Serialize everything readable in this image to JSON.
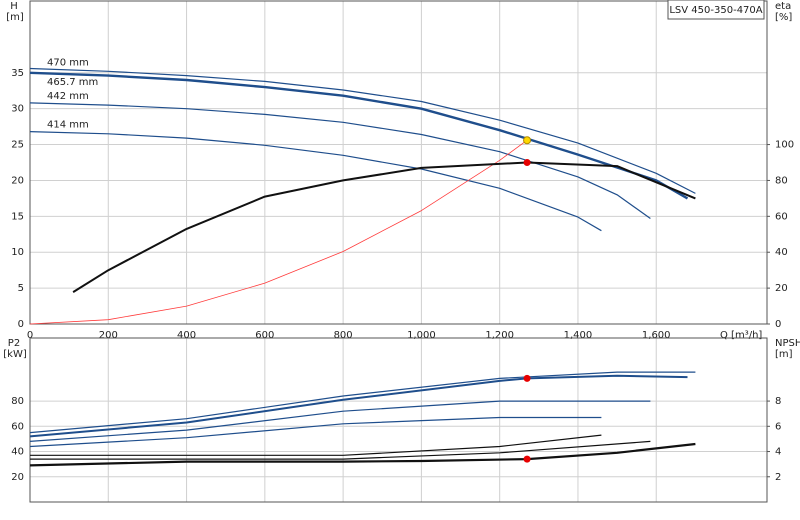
{
  "chart_data": [
    {
      "type": "line",
      "model": "LSV 450-350-470A",
      "ylabel": "H",
      "yunit": "[m]",
      "y2label": "eta",
      "y2unit": "[%]",
      "xlabel": "Q [m³/h]",
      "xlim": [
        0,
        1883
      ],
      "xticks": [
        0,
        200,
        400,
        600,
        800,
        {
          "value": 1000,
          "label": "1,000"
        },
        {
          "value": 1200,
          "label": "1,200"
        },
        {
          "value": 1400,
          "label": "1,400"
        },
        {
          "value": 1600,
          "label": "1,600"
        }
      ],
      "ylim": [
        0,
        45
      ],
      "yticks": [
        0,
        5,
        10,
        15,
        20,
        25,
        30,
        35
      ],
      "y2lim": [
        0,
        180
      ],
      "y2ticks": [
        0,
        20,
        40,
        60,
        80,
        100
      ],
      "grid": true,
      "series": [
        {
          "name": "470 mm",
          "color": "#1f4e8c",
          "line_width": 1.2,
          "x": [
            0,
            200,
            400,
            600,
            800,
            1000,
            1200,
            1400,
            1600,
            1700
          ],
          "values": [
            35.6,
            35.2,
            34.6,
            33.8,
            32.6,
            31.0,
            28.4,
            25.2,
            21.0,
            18.2
          ]
        },
        {
          "name": "465.7 mm",
          "color": "#1f4e8c",
          "line_width": 2.4,
          "x": [
            0,
            200,
            400,
            600,
            800,
            1000,
            1200,
            1400,
            1600,
            1680
          ],
          "values": [
            35.0,
            34.6,
            34.0,
            33.0,
            31.8,
            30.0,
            27.0,
            23.6,
            20.0,
            17.5
          ]
        },
        {
          "name": "442 mm",
          "color": "#1f4e8c",
          "line_width": 1.2,
          "x": [
            0,
            200,
            400,
            600,
            800,
            1000,
            1200,
            1400,
            1500,
            1585
          ],
          "values": [
            30.8,
            30.5,
            30.0,
            29.2,
            28.1,
            26.4,
            24.0,
            20.5,
            18.0,
            14.7
          ]
        },
        {
          "name": "414 mm",
          "color": "#1f4e8c",
          "line_width": 1.2,
          "x": [
            0,
            200,
            400,
            600,
            800,
            1000,
            1200,
            1400,
            1460
          ],
          "values": [
            26.8,
            26.5,
            25.9,
            24.9,
            23.5,
            21.6,
            18.9,
            14.9,
            13.0
          ]
        },
        {
          "color": "#ff3b3b",
          "line_width": 0.8,
          "x": [
            0,
            200,
            400,
            600,
            800,
            1000,
            1200,
            1270
          ],
          "values": [
            0,
            0.6,
            2.5,
            5.7,
            10.1,
            15.8,
            22.8,
            25.6
          ]
        },
        {
          "color": "#111111",
          "line_width": 2.0,
          "axis": "y2",
          "x": [
            110,
            200,
            400,
            600,
            800,
            1000,
            1270,
            1500,
            1700
          ],
          "values": [
            17.8,
            30,
            53,
            71,
            80,
            87,
            90,
            88,
            70
          ]
        }
      ],
      "points": [
        {
          "x": 1270,
          "y": 25.6,
          "color": "#ffd700"
        },
        {
          "x": 1270,
          "y": 90,
          "color": "#e60000",
          "axis": "y2"
        }
      ]
    },
    {
      "type": "line",
      "ylabel": "P2",
      "yunit": "[kW]",
      "y2label": "NPSH",
      "y2unit": "[m]",
      "xlim": [
        0,
        1883
      ],
      "xticks": [
        0,
        200,
        400,
        600,
        800,
        1000,
        1200,
        1400,
        1600
      ],
      "ylim": [
        0,
        130
      ],
      "yticks": [
        20,
        40,
        60,
        80
      ],
      "y2lim": [
        0,
        13
      ],
      "y2ticks": [
        2,
        4,
        6,
        8
      ],
      "grid": true,
      "series": [
        {
          "color": "#1f4e8c",
          "line_width": 1.2,
          "x": [
            0,
            400,
            800,
            1200,
            1500,
            1700
          ],
          "values": [
            55,
            66,
            84,
            98,
            103,
            103
          ]
        },
        {
          "color": "#1f4e8c",
          "line_width": 2.0,
          "x": [
            0,
            400,
            800,
            1200,
            1270,
            1500,
            1680
          ],
          "values": [
            52,
            63,
            81,
            96,
            98,
            100,
            99
          ]
        },
        {
          "color": "#1f4e8c",
          "line_width": 1.2,
          "x": [
            0,
            400,
            800,
            1200,
            1585
          ],
          "values": [
            48,
            57,
            72,
            80,
            80
          ]
        },
        {
          "color": "#1f4e8c",
          "line_width": 1.2,
          "x": [
            0,
            400,
            800,
            1200,
            1460
          ],
          "values": [
            44,
            51,
            62,
            67,
            67
          ]
        },
        {
          "color": "#111111",
          "line_width": 2.2,
          "axis": "y2",
          "x": [
            0,
            400,
            800,
            1000,
            1270,
            1500,
            1700
          ],
          "values": [
            2.9,
            3.2,
            3.2,
            3.25,
            3.4,
            3.9,
            4.6
          ]
        },
        {
          "color": "#111111",
          "line_width": 1.2,
          "axis": "y2",
          "x": [
            0,
            800,
            1200,
            1585
          ],
          "values": [
            3.4,
            3.4,
            3.9,
            4.8
          ]
        },
        {
          "color": "#111111",
          "line_width": 1.2,
          "axis": "y2",
          "x": [
            0,
            800,
            1200,
            1460
          ],
          "values": [
            3.7,
            3.7,
            4.4,
            5.3
          ]
        }
      ],
      "points": [
        {
          "x": 1270,
          "y": 98,
          "color": "#e60000"
        },
        {
          "x": 1270,
          "y": 3.4,
          "color": "#e60000",
          "axis": "y2"
        }
      ]
    }
  ]
}
